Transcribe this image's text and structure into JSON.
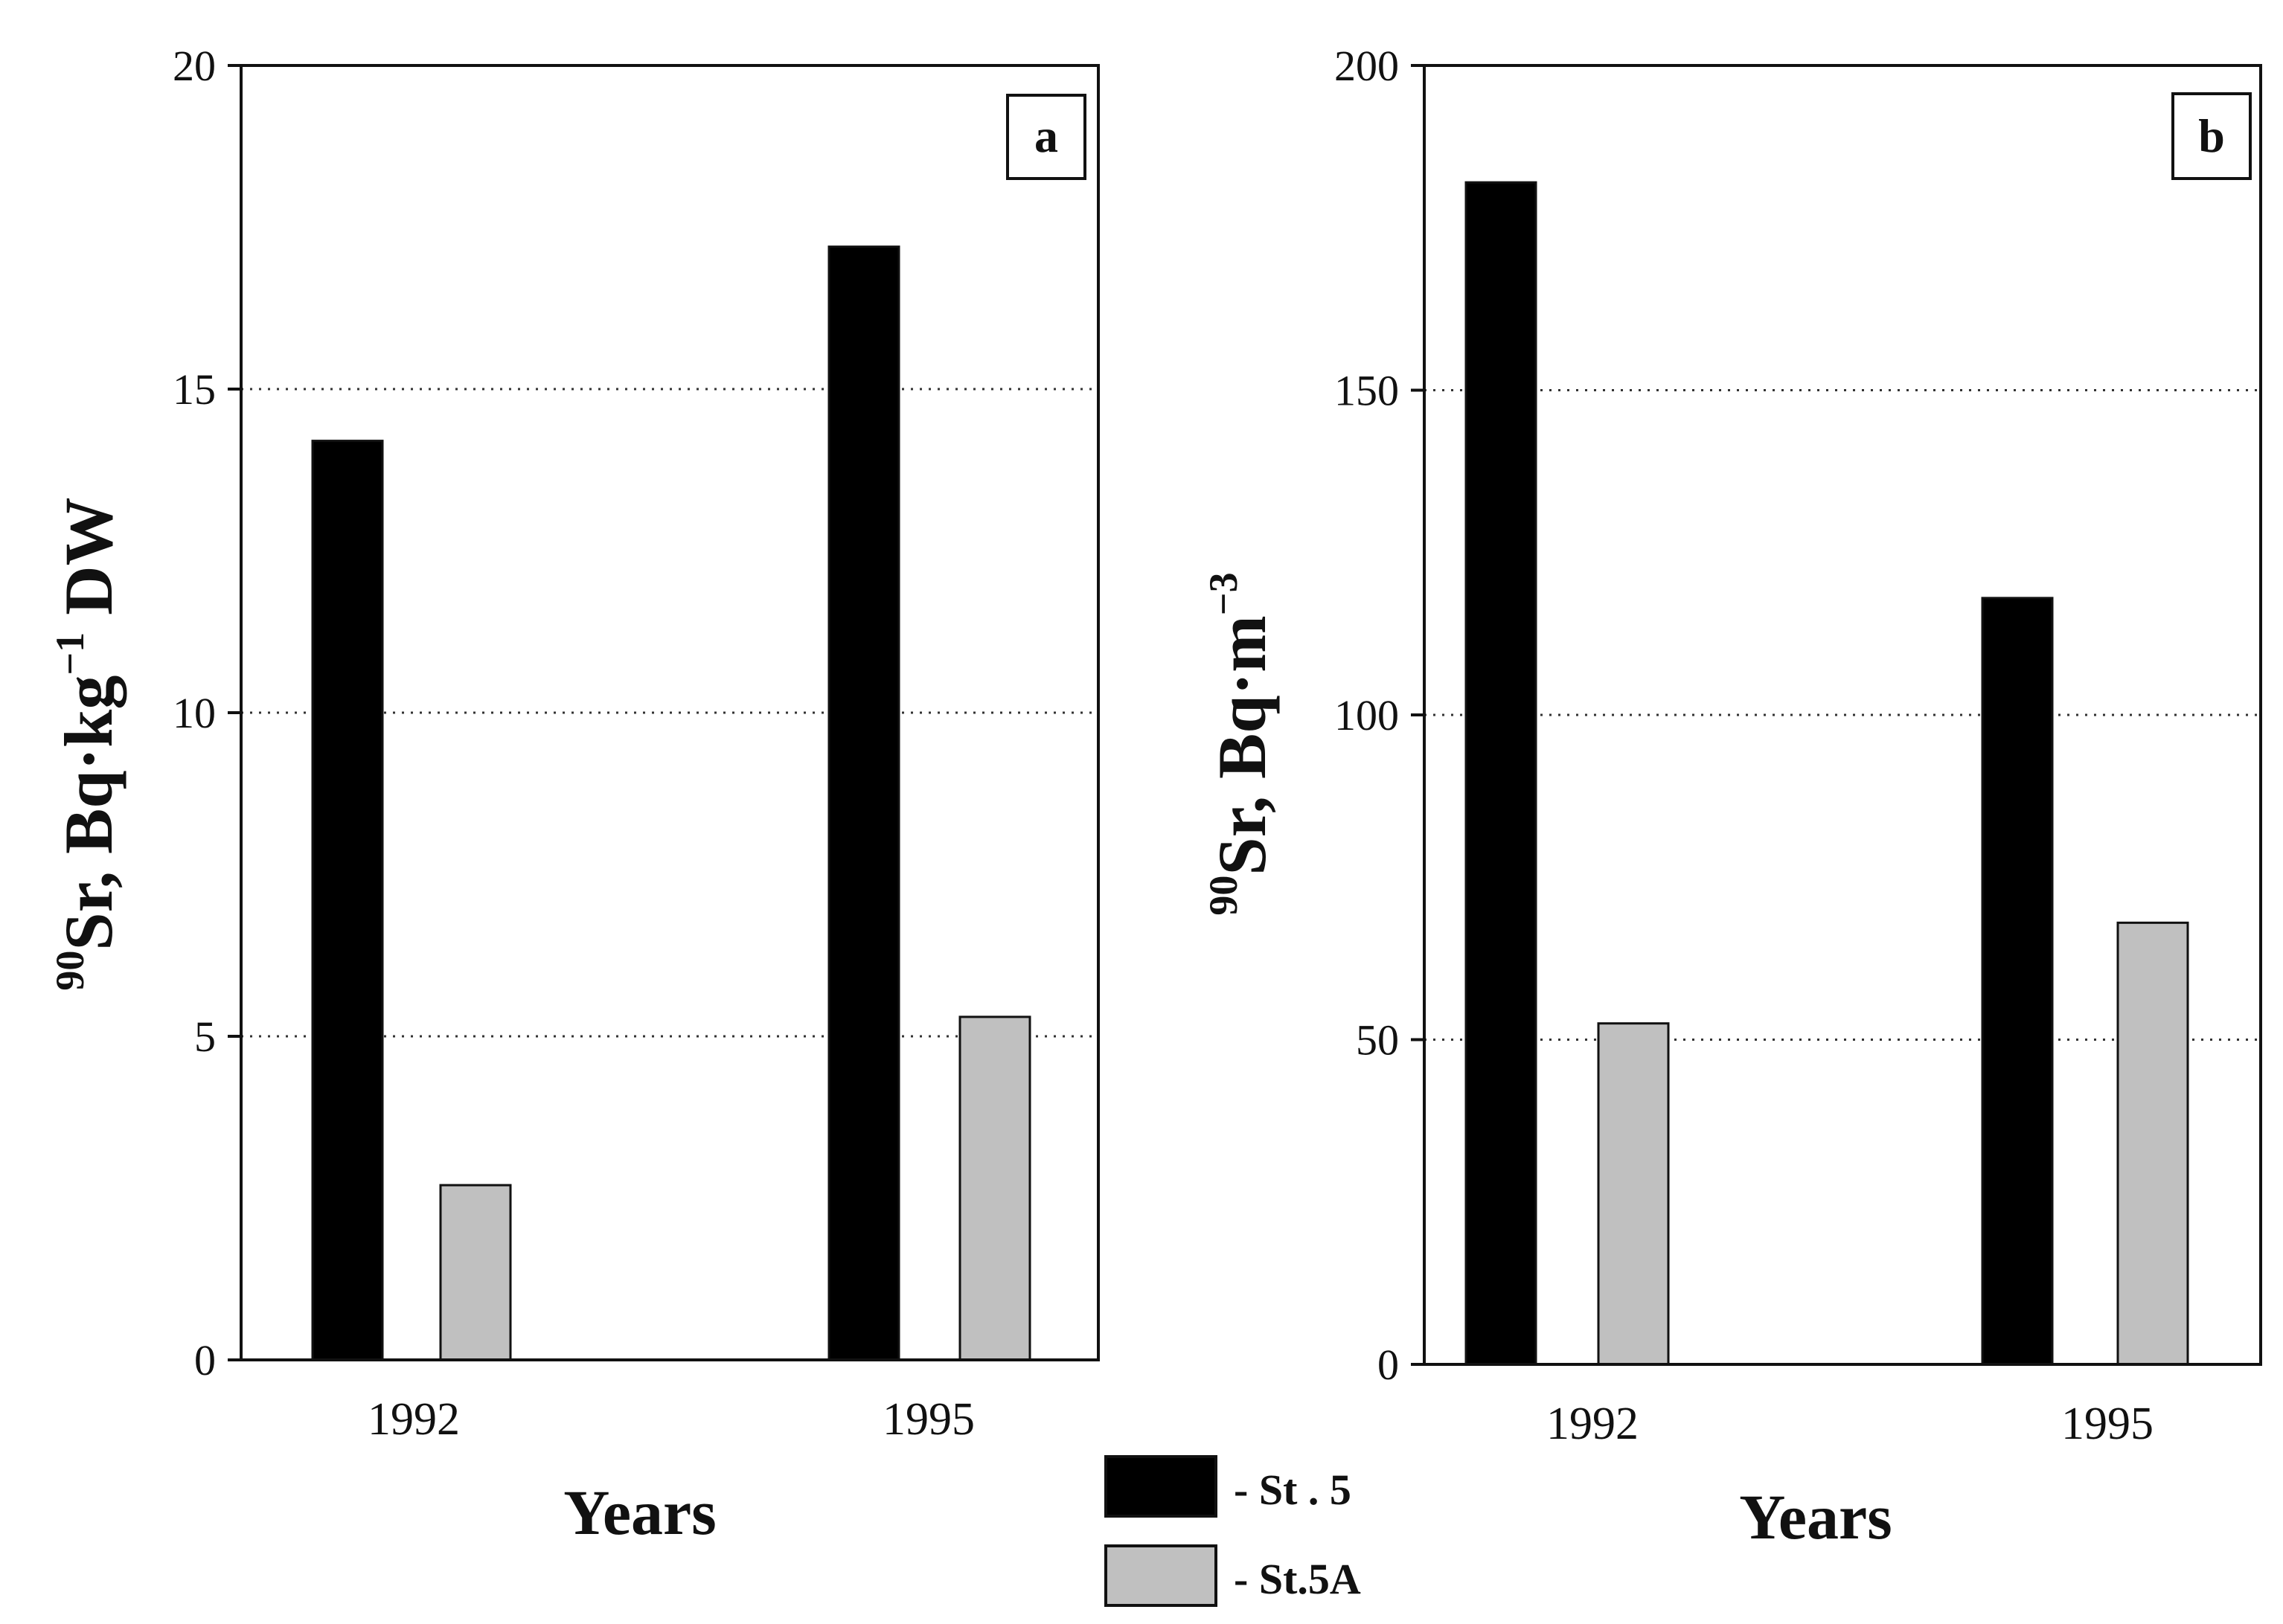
{
  "chart_data": [
    {
      "type": "bar",
      "panel_label": "a",
      "categories": [
        "1992",
        "1995"
      ],
      "series": [
        {
          "name": "St. 5",
          "color": "#000000",
          "values": [
            14.2,
            17.2
          ]
        },
        {
          "name": "St.5A",
          "color": "#c0c0c0",
          "values": [
            2.7,
            5.3
          ]
        }
      ],
      "ylabel_main": "Sr, Bq·kg",
      "ylabel_sup1": "90",
      "ylabel_sup2": "−1",
      "ylabel_tail": " DW",
      "xlabel": "Years",
      "ylim": [
        0,
        20
      ],
      "yticks": [
        "0",
        "5",
        "10",
        "15",
        "20"
      ],
      "ytick_values": [
        0,
        5,
        10,
        15,
        20
      ],
      "grid": "dotted horizontal at 5, 10, 15"
    },
    {
      "type": "bar",
      "panel_label": "b",
      "categories": [
        "1992",
        "1995"
      ],
      "series": [
        {
          "name": "St. 5",
          "color": "#000000",
          "values": [
            182,
            118
          ]
        },
        {
          "name": "St.5A",
          "color": "#c0c0c0",
          "values": [
            52.5,
            68
          ]
        }
      ],
      "ylabel_main": "Sr, Bq·m",
      "ylabel_sup1": "90",
      "ylabel_sup2": "−3",
      "ylabel_tail": "",
      "xlabel": "Years",
      "ylim": [
        0,
        200
      ],
      "yticks": [
        "0",
        "50",
        "100",
        "150",
        "200"
      ],
      "ytick_values": [
        0,
        50,
        100,
        150,
        200
      ],
      "grid": "dotted horizontal at 50, 100, 150"
    }
  ],
  "legend": {
    "placement": "bottom-center",
    "items": [
      {
        "label": "- St . 5",
        "color": "#000000"
      },
      {
        "label": "- St.5A",
        "color": "#c0c0c0"
      }
    ]
  }
}
